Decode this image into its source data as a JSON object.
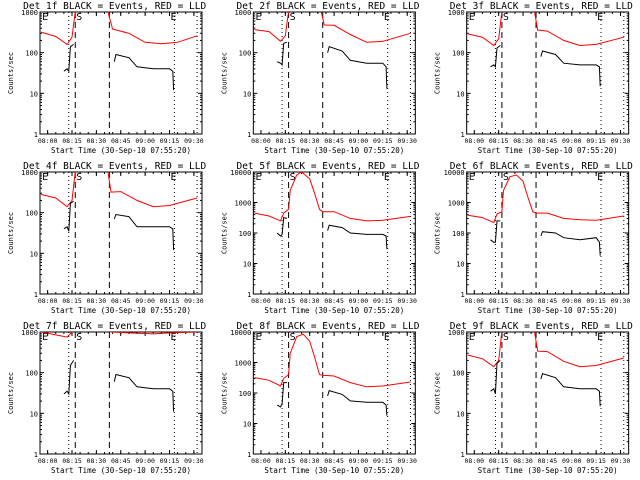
{
  "chart_data": {
    "type": "line",
    "layout": "3x3 grid of log-scale time series",
    "xlabel": "Start Time (30-Sep-10 07:55:20)",
    "ylabel": "Counts/sec",
    "x_ticks": [
      "08:00",
      "08:15",
      "08:30",
      "08:45",
      "09:00",
      "09:15",
      "09:30"
    ],
    "x_range_minutes_after_0800": [
      -4.7,
      32
    ],
    "legend_note": "BLACK = Events, RED = LLD",
    "markers": {
      "dotted_lines_min": [
        13,
        78
      ],
      "dashed_lines_min": [
        17,
        38
      ],
      "labels": [
        {
          "text": "E",
          "min": -4
        },
        {
          "text": "S",
          "min": 17
        },
        {
          "text": "E",
          "min": 75
        }
      ],
      "dotted_right_min": 92
    },
    "panels": [
      {
        "title": "Det 1f BLACK = Events, RED = LLD",
        "ylim": [
          1,
          1000
        ],
        "y_ticks": [
          "1",
          "10",
          "100",
          "1000"
        ],
        "red": [
          [
            -4,
            320
          ],
          [
            5,
            250
          ],
          [
            12,
            160
          ],
          [
            15,
            240
          ],
          [
            17,
            1200
          ],
          [
            37,
            1200
          ],
          [
            40,
            380
          ],
          [
            50,
            300
          ],
          [
            60,
            180
          ],
          [
            70,
            165
          ],
          [
            80,
            180
          ],
          [
            92,
            260
          ]
        ],
        "black_segments": [
          [
            [
              10,
              35
            ],
            [
              12,
              40
            ],
            [
              13,
              35
            ],
            [
              14,
              140
            ],
            [
              16,
              160
            ]
          ],
          [
            [
              41,
              60
            ],
            [
              42,
              90
            ],
            [
              50,
              75
            ],
            [
              55,
              45
            ],
            [
              65,
              40
            ],
            [
              75,
              40
            ],
            [
              77,
              35
            ],
            [
              77.5,
              12
            ]
          ]
        ]
      },
      {
        "title": "Det 2f BLACK = Events, RED = LLD",
        "ylim": [
          1,
          1000
        ],
        "y_ticks": [
          "1",
          "10",
          "100",
          "1000"
        ],
        "red": [
          [
            -4,
            370
          ],
          [
            5,
            330
          ],
          [
            12,
            190
          ],
          [
            15,
            260
          ],
          [
            17,
            1200
          ],
          [
            37,
            1200
          ],
          [
            39,
            480
          ],
          [
            45,
            470
          ],
          [
            55,
            280
          ],
          [
            65,
            180
          ],
          [
            75,
            190
          ],
          [
            92,
            300
          ]
        ],
        "black_segments": [
          [
            [
              10,
              60
            ],
            [
              12,
              55
            ],
            [
              13,
              50
            ],
            [
              14,
              170
            ],
            [
              16,
              180
            ]
          ],
          [
            [
              41,
              100
            ],
            [
              42,
              140
            ],
            [
              50,
              110
            ],
            [
              55,
              65
            ],
            [
              65,
              55
            ],
            [
              75,
              55
            ],
            [
              77,
              45
            ],
            [
              77.5,
              13
            ]
          ]
        ]
      },
      {
        "title": "Det 3f BLACK = Events, RED = LLD",
        "ylim": [
          1,
          1000
        ],
        "y_ticks": [
          "1",
          "10",
          "100",
          "1000"
        ],
        "red": [
          [
            -4,
            290
          ],
          [
            5,
            240
          ],
          [
            12,
            150
          ],
          [
            15,
            220
          ],
          [
            17,
            1200
          ],
          [
            37,
            1200
          ],
          [
            39,
            360
          ],
          [
            45,
            340
          ],
          [
            55,
            200
          ],
          [
            65,
            150
          ],
          [
            75,
            160
          ],
          [
            92,
            240
          ]
        ],
        "black_segments": [
          [
            [
              10,
              45
            ],
            [
              12,
              50
            ],
            [
              13,
              45
            ],
            [
              14,
              130
            ],
            [
              16,
              150
            ]
          ],
          [
            [
              41,
              80
            ],
            [
              42,
              110
            ],
            [
              50,
              90
            ],
            [
              55,
              55
            ],
            [
              65,
              50
            ],
            [
              75,
              50
            ],
            [
              77,
              45
            ],
            [
              77.5,
              15
            ]
          ]
        ]
      },
      {
        "title": "Det 4f BLACK = Events, RED = LLD",
        "ylim": [
          1,
          1000
        ],
        "y_ticks": [
          "1",
          "10",
          "100",
          "1000"
        ],
        "red": [
          [
            -4,
            280
          ],
          [
            5,
            230
          ],
          [
            12,
            140
          ],
          [
            15,
            200
          ],
          [
            17,
            1200
          ],
          [
            37,
            1200
          ],
          [
            39,
            320
          ],
          [
            45,
            330
          ],
          [
            55,
            200
          ],
          [
            65,
            140
          ],
          [
            75,
            150
          ],
          [
            92,
            230
          ]
        ],
        "black_segments": [
          [
            [
              10,
              40
            ],
            [
              12,
              45
            ],
            [
              13,
              35
            ],
            [
              14,
              170
            ],
            [
              16,
              190
            ]
          ],
          [
            [
              41,
              70
            ],
            [
              42,
              90
            ],
            [
              50,
              80
            ],
            [
              55,
              45
            ],
            [
              65,
              45
            ],
            [
              75,
              45
            ],
            [
              77,
              40
            ],
            [
              77.5,
              12
            ]
          ]
        ]
      },
      {
        "title": "Det 5f BLACK = Events, RED = LLD",
        "ylim": [
          1,
          10000
        ],
        "y_ticks": [
          "1",
          "10",
          "100",
          "1000",
          "10000"
        ],
        "red": [
          [
            -4,
            450
          ],
          [
            5,
            360
          ],
          [
            12,
            250
          ],
          [
            14,
            450
          ],
          [
            17,
            600
          ],
          [
            18,
            2500
          ],
          [
            22,
            8000
          ],
          [
            25,
            10000
          ],
          [
            30,
            6000
          ],
          [
            33,
            2000
          ],
          [
            36,
            600
          ],
          [
            38,
            500
          ],
          [
            45,
            500
          ],
          [
            55,
            300
          ],
          [
            65,
            250
          ],
          [
            75,
            260
          ],
          [
            92,
            350
          ]
        ],
        "black_segments": [
          [
            [
              10,
              100
            ],
            [
              12,
              80
            ],
            [
              13,
              90
            ],
            [
              14,
              320
            ],
            [
              16,
              300
            ]
          ],
          [
            [
              41,
              120
            ],
            [
              42,
              180
            ],
            [
              50,
              150
            ],
            [
              55,
              100
            ],
            [
              65,
              90
            ],
            [
              75,
              90
            ],
            [
              77,
              80
            ],
            [
              77.5,
              30
            ]
          ]
        ]
      },
      {
        "title": "Det 6f BLACK = Events, RED = LLD",
        "ylim": [
          1,
          10000
        ],
        "y_ticks": [
          "1",
          "10",
          "100",
          "1000",
          "10000"
        ],
        "red": [
          [
            -4,
            380
          ],
          [
            5,
            320
          ],
          [
            12,
            220
          ],
          [
            14,
            420
          ],
          [
            17,
            500
          ],
          [
            18,
            2500
          ],
          [
            22,
            7000
          ],
          [
            26,
            8000
          ],
          [
            30,
            5000
          ],
          [
            33,
            1500
          ],
          [
            36,
            500
          ],
          [
            38,
            450
          ],
          [
            45,
            450
          ],
          [
            55,
            300
          ],
          [
            65,
            270
          ],
          [
            75,
            260
          ],
          [
            92,
            360
          ]
        ],
        "black_segments": [
          [
            [
              10,
              60
            ],
            [
              12,
              50
            ],
            [
              13,
              50
            ],
            [
              14,
              250
            ],
            [
              16,
              250
            ]
          ],
          [
            [
              41,
              80
            ],
            [
              42,
              110
            ],
            [
              50,
              100
            ],
            [
              55,
              70
            ],
            [
              65,
              60
            ],
            [
              75,
              70
            ],
            [
              77,
              50
            ],
            [
              77.5,
              18
            ]
          ]
        ]
      },
      {
        "title": "Det 7f BLACK = Events, RED = LLD",
        "ylim": [
          1,
          1000
        ],
        "y_ticks": [
          "1",
          "10",
          "100",
          "1000"
        ],
        "red": [
          [
            -4,
            1000
          ],
          [
            5,
            850
          ],
          [
            12,
            750
          ],
          [
            15,
            1000
          ],
          [
            17,
            1200
          ],
          [
            37,
            1200
          ],
          [
            39,
            1000
          ],
          [
            50,
            950
          ],
          [
            65,
            900
          ],
          [
            75,
            950
          ],
          [
            92,
            1000
          ]
        ],
        "black_segments": [
          [
            [
              10,
              30
            ],
            [
              12,
              35
            ],
            [
              13,
              30
            ],
            [
              14,
              150
            ],
            [
              16,
              200
            ]
          ],
          [
            [
              41,
              60
            ],
            [
              42,
              90
            ],
            [
              50,
              75
            ],
            [
              55,
              45
            ],
            [
              65,
              40
            ],
            [
              75,
              40
            ],
            [
              77,
              35
            ],
            [
              77.5,
              11
            ]
          ]
        ]
      },
      {
        "title": "Det 8f BLACK = Events, RED = LLD",
        "ylim": [
          1,
          10000
        ],
        "y_ticks": [
          "1",
          "10",
          "100",
          "1000",
          "10000"
        ],
        "red": [
          [
            -4,
            320
          ],
          [
            5,
            260
          ],
          [
            12,
            170
          ],
          [
            14,
            300
          ],
          [
            17,
            400
          ],
          [
            18,
            2000
          ],
          [
            22,
            7000
          ],
          [
            26,
            8500
          ],
          [
            30,
            5000
          ],
          [
            33,
            1500
          ],
          [
            36,
            400
          ],
          [
            38,
            380
          ],
          [
            45,
            360
          ],
          [
            55,
            220
          ],
          [
            65,
            160
          ],
          [
            75,
            170
          ],
          [
            92,
            230
          ]
        ],
        "black_segments": [
          [
            [
              10,
              40
            ],
            [
              12,
              35
            ],
            [
              13,
              45
            ],
            [
              14,
              220
            ],
            [
              16,
              220
            ]
          ],
          [
            [
              41,
              80
            ],
            [
              42,
              120
            ],
            [
              50,
              90
            ],
            [
              55,
              55
            ],
            [
              65,
              50
            ],
            [
              75,
              50
            ],
            [
              77,
              40
            ],
            [
              77.5,
              18
            ]
          ]
        ]
      },
      {
        "title": "Det 9f BLACK = Events, RED = LLD",
        "ylim": [
          1,
          1000
        ],
        "y_ticks": [
          "1",
          "10",
          "100",
          "1000"
        ],
        "red": [
          [
            -4,
            270
          ],
          [
            5,
            220
          ],
          [
            12,
            140
          ],
          [
            15,
            200
          ],
          [
            17,
            1200
          ],
          [
            37,
            1200
          ],
          [
            39,
            340
          ],
          [
            45,
            330
          ],
          [
            55,
            190
          ],
          [
            65,
            140
          ],
          [
            75,
            150
          ],
          [
            92,
            230
          ]
        ],
        "black_segments": [
          [
            [
              10,
              35
            ],
            [
              12,
              40
            ],
            [
              13,
              30
            ],
            [
              14,
              170
            ],
            [
              16,
              200
            ]
          ],
          [
            [
              41,
              70
            ],
            [
              42,
              95
            ],
            [
              50,
              75
            ],
            [
              55,
              45
            ],
            [
              65,
              40
            ],
            [
              75,
              40
            ],
            [
              77,
              35
            ],
            [
              77.5,
              15
            ]
          ]
        ]
      }
    ]
  },
  "colors": {
    "events": "#000000",
    "lld": "#ff0000",
    "axes": "#000000",
    "background": "#ffffff"
  }
}
